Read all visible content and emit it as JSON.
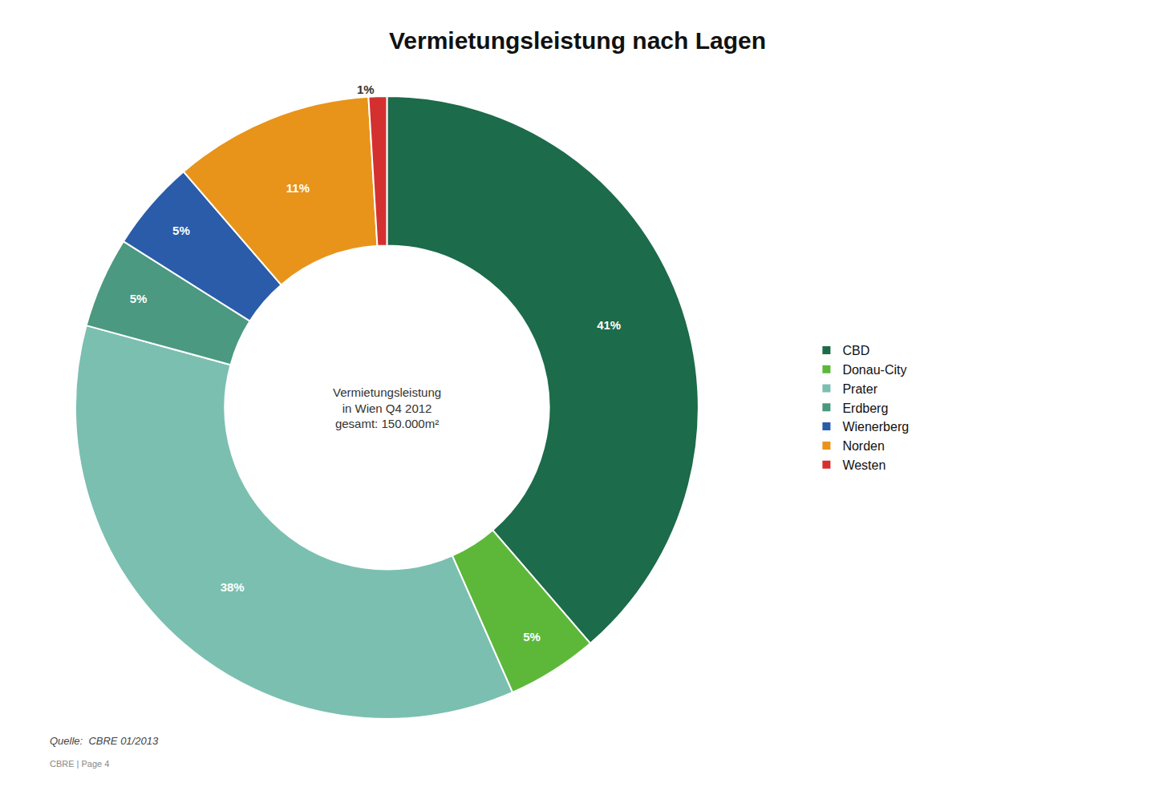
{
  "chart_data": {
    "type": "pie",
    "title": "Vermietungsleistung nach Lagen",
    "center_text": [
      "Vermietungsleistung",
      "in Wien Q4 2012",
      "gesamt: 150.000m²"
    ],
    "categories": [
      "CBD",
      "Donau-City",
      "Prater",
      "Erdberg",
      "Wienerberg",
      "Norden",
      "Westen"
    ],
    "values": [
      41,
      5,
      38,
      5,
      5,
      11,
      1
    ],
    "value_labels": [
      "41%",
      "5%",
      "38%",
      "5%",
      "5%",
      "11%",
      "1%"
    ],
    "colors": [
      "#1c6b4a",
      "#5db83a",
      "#7bbfb0",
      "#4a9980",
      "#2a5caa",
      "#e8941a",
      "#d43030"
    ],
    "data_labels": true,
    "legend": "right",
    "source": "Quelle:  CBRE 01/2013",
    "footer": "CBRE | Page 4"
  }
}
